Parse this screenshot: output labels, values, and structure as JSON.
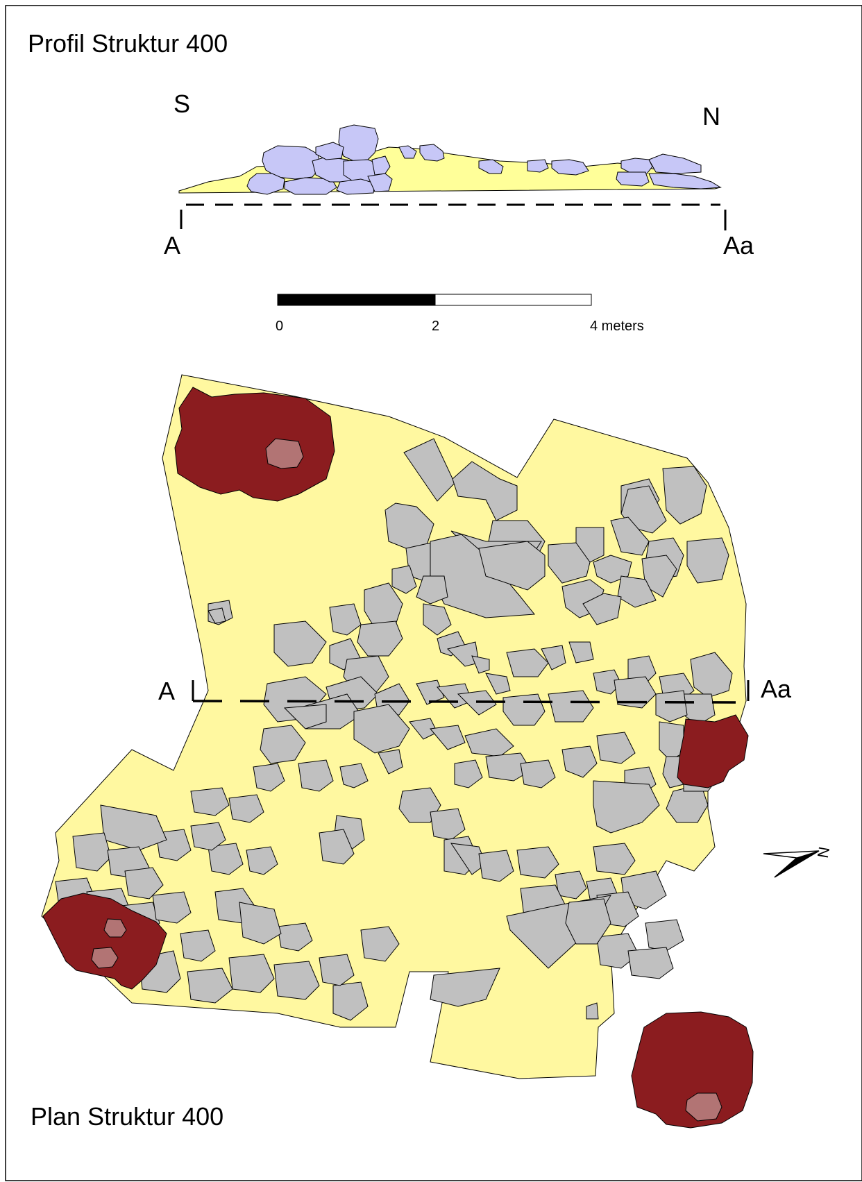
{
  "profile": {
    "title": "Profil  Struktur 400",
    "south_label": "S",
    "north_label": "N",
    "start_label": "A",
    "end_label": "Aa"
  },
  "scale_bar": {
    "tick_0": "0",
    "tick_2": "2",
    "tick_4": "4 meters",
    "length_m": 4
  },
  "plan": {
    "title": "Plan  Struktur 400",
    "section_start_label": "A",
    "section_end_label": "Aa",
    "north_arrow_label": "N"
  },
  "colors": {
    "profile_fill": "#ffff99",
    "profile_stone": "#c7c7f7",
    "plan_fill": "#fff8a0",
    "plan_stone": "#c0c0c0",
    "pit_dark": "#8b1c1f",
    "pit_light": "#b27474"
  }
}
